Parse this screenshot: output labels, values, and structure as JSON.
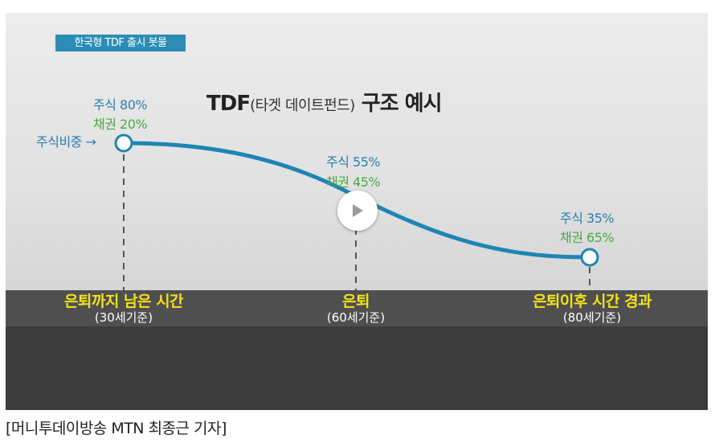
{
  "badge": "한국형 TDF 출시 봇물",
  "title": {
    "main": "TDF",
    "paren": "(타겟 데이트펀드)",
    "tail": "구조 예시"
  },
  "weight_label": "주식비중 →",
  "points": [
    {
      "stock": "주식 80%",
      "bond": "채권 20%",
      "stage": "은퇴까지 남은 시간",
      "age": "(30세기준)"
    },
    {
      "stock": "주식 55%",
      "bond": "채권 45%",
      "stage": "은퇴",
      "age": "(60세기준)"
    },
    {
      "stock": "주식 35%",
      "bond": "채권 65%",
      "stage": "은퇴이후 시간 경과",
      "age": "(80세기준)"
    }
  ],
  "caption": "[머니투데이방송 MTN 최종근 기자]",
  "colors": {
    "curve": "#1f85b3",
    "badge": "#2b8db5",
    "stock": "#2a7fae",
    "bond": "#4aa845",
    "stage": "#f2e21a"
  },
  "icons": {
    "play": "play-icon"
  }
}
